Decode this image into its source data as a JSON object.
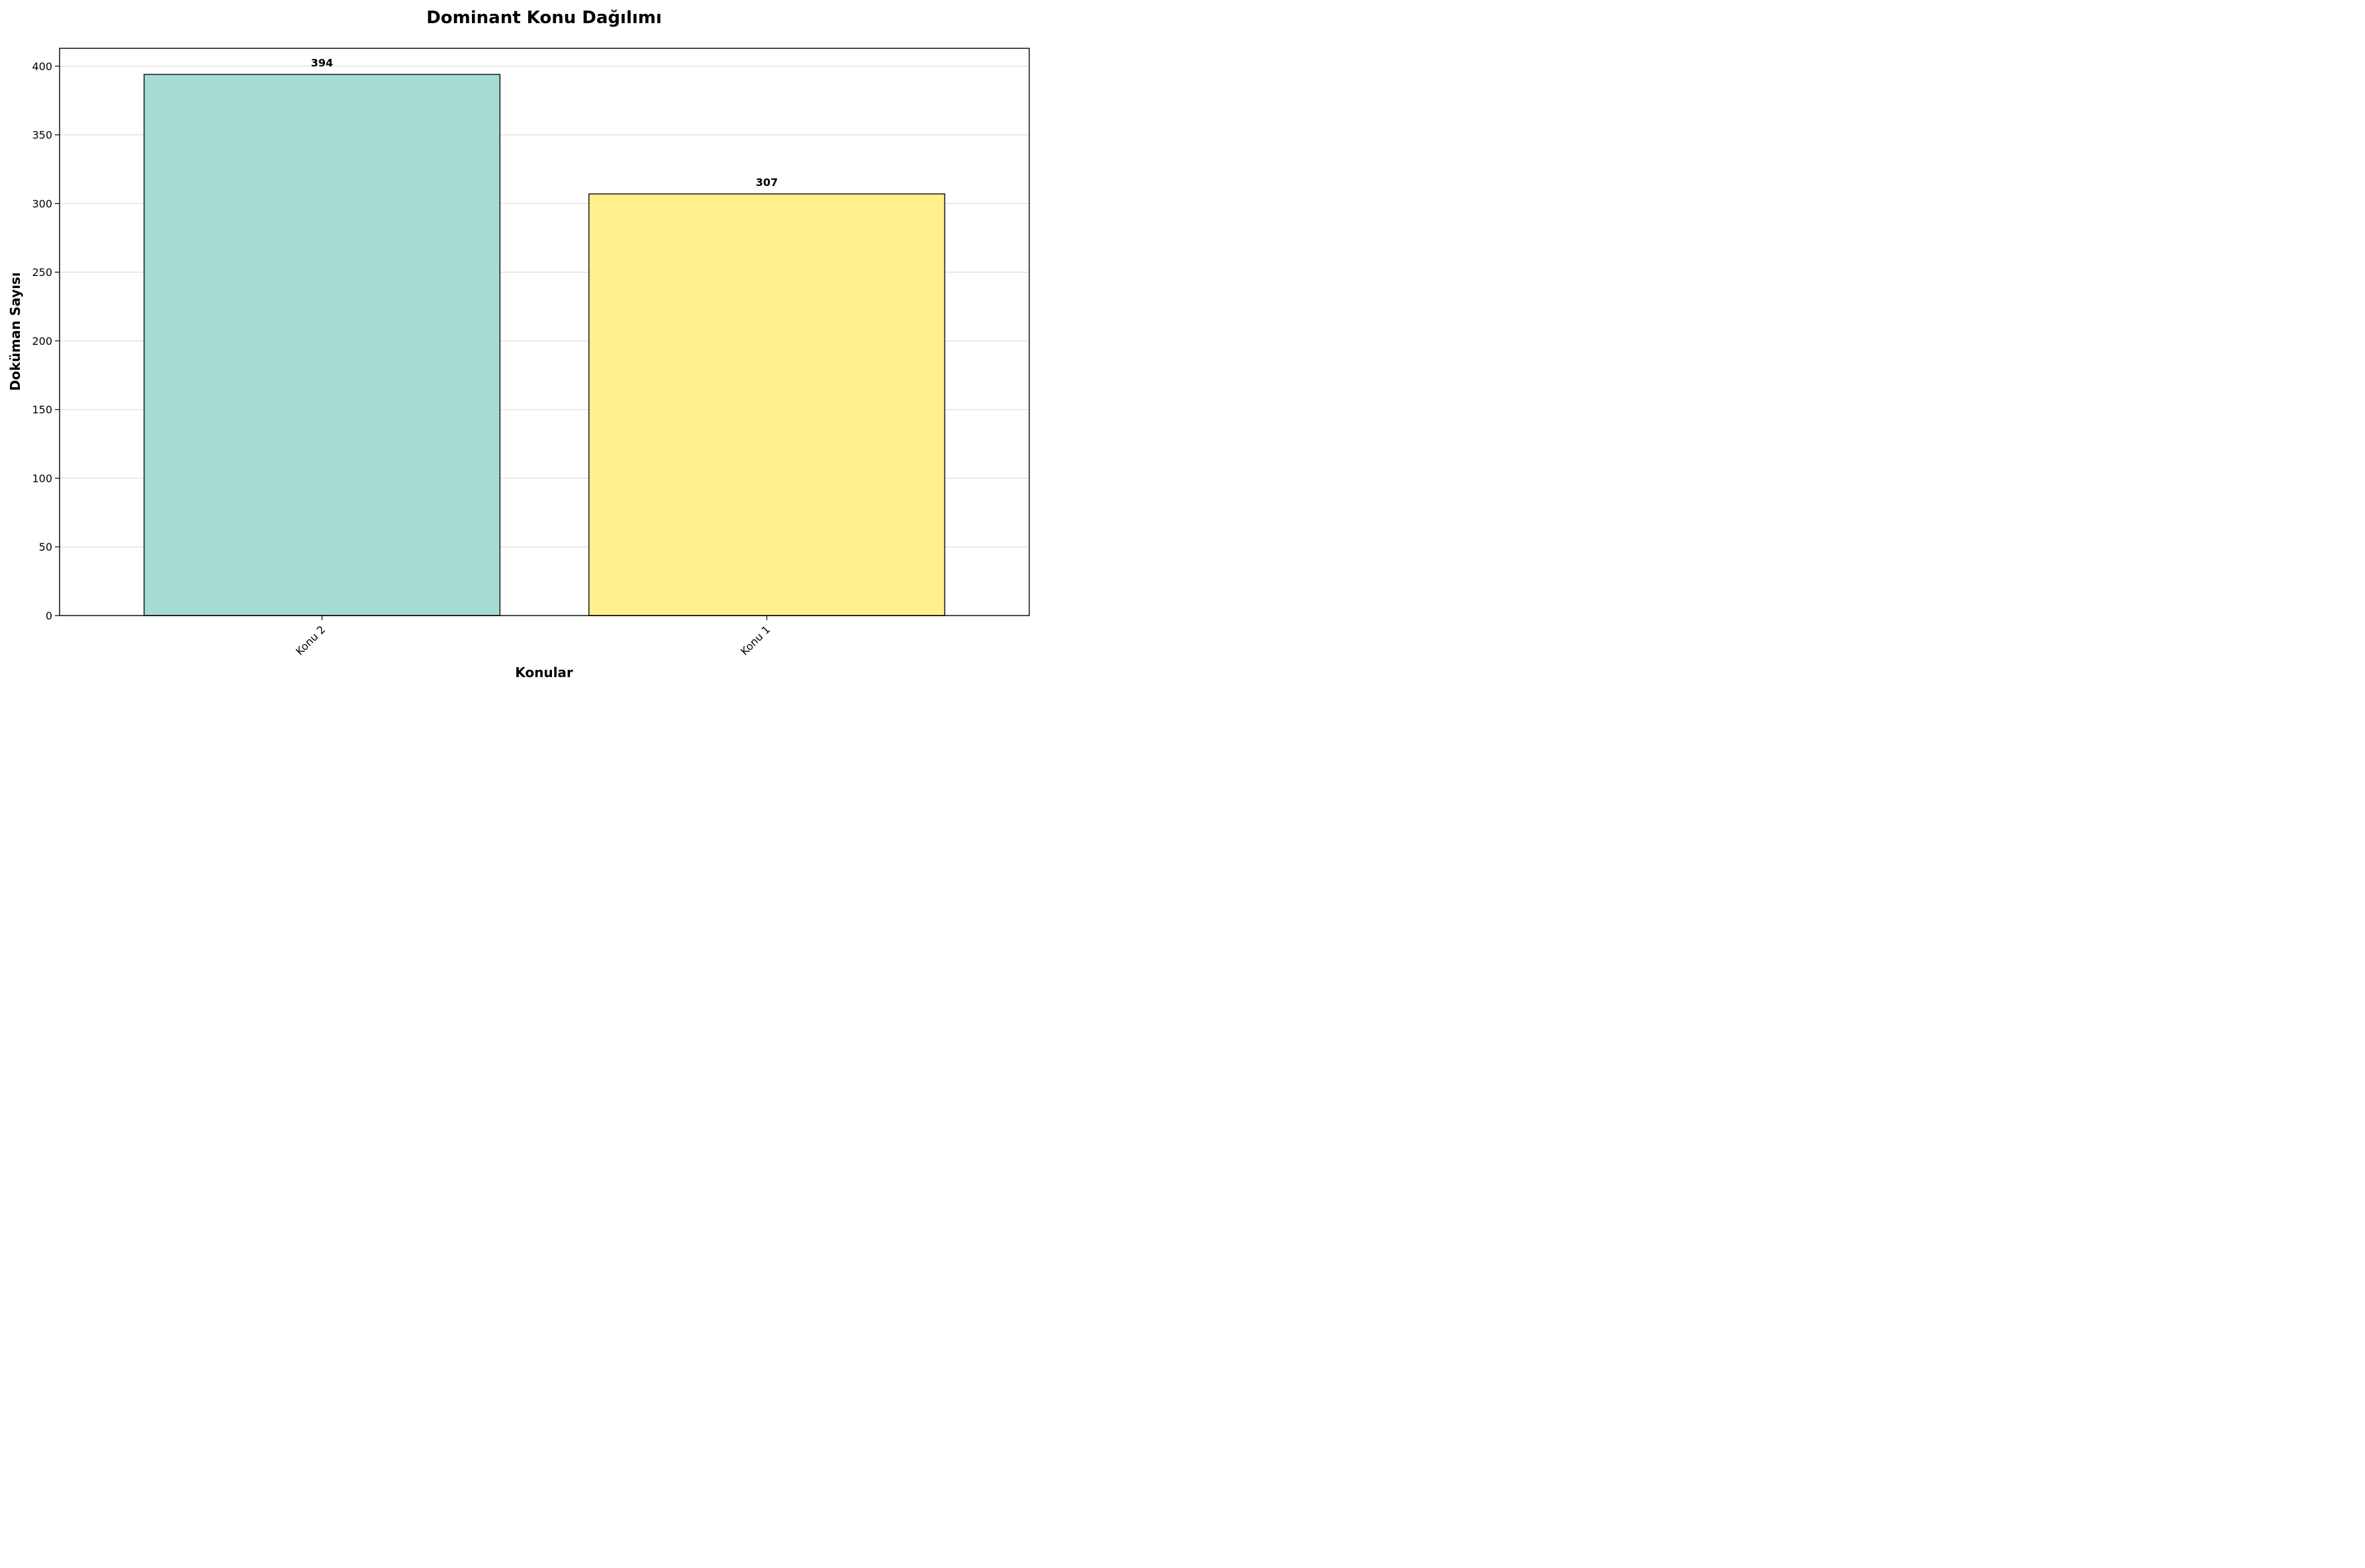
{
  "chart_data": {
    "type": "bar",
    "title": "Dominant Konu Dağılımı",
    "xlabel": "Konular",
    "ylabel": "Doküman Sayısı",
    "categories": [
      "Konu 2",
      "Konu 1"
    ],
    "values": [
      394,
      307
    ],
    "data_labels": [
      "394",
      "307"
    ],
    "bar_colors": [
      "#a6dcd4",
      "#ffef8d"
    ],
    "edge_color": "#222222",
    "ylim": [
      0,
      413
    ],
    "yticks": [
      0,
      50,
      100,
      150,
      200,
      250,
      300,
      350,
      400
    ],
    "ytick_labels": [
      "0",
      "50",
      "100",
      "150",
      "200",
      "250",
      "300",
      "350",
      "400"
    ],
    "xtick_rotation": 45,
    "grid": "y",
    "legend": "none"
  }
}
